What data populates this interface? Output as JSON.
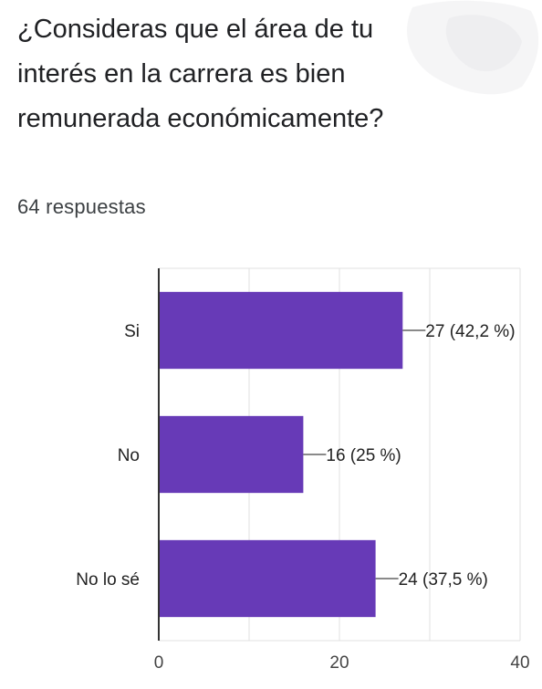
{
  "question": {
    "title": "¿Consideras que el área de tu interés en la carrera es bien remunerada económicamente?"
  },
  "summary": {
    "responses": "64 respuestas"
  },
  "chart_data": {
    "type": "bar",
    "orientation": "horizontal",
    "categories": [
      "Si",
      "No",
      "No lo sé"
    ],
    "values": [
      27,
      16,
      24
    ],
    "data_labels": [
      "27 (42,2 %)",
      "16 (25 %)",
      "24 (37,5 %)"
    ],
    "xlim": [
      0,
      40
    ],
    "xticks": [
      0,
      20,
      40
    ],
    "grid": true,
    "bar_color": "#673ab7",
    "title": "",
    "xlabel": "",
    "ylabel": ""
  }
}
